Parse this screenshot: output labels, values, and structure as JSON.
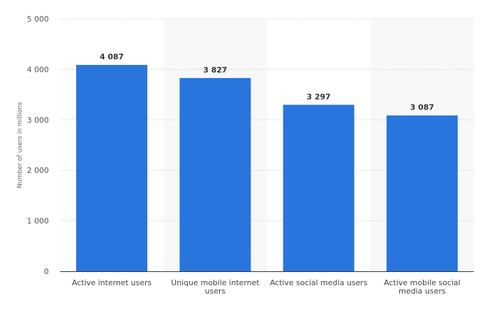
{
  "chart_data": {
    "type": "bar",
    "title": "",
    "xlabel": "",
    "ylabel": "Number of users in millions",
    "ylim": [
      0,
      5000
    ],
    "yticks": [
      0,
      1000,
      2000,
      3000,
      4000,
      5000
    ],
    "ytick_labels": [
      "0",
      "1 000",
      "2 000",
      "3 000",
      "4 000",
      "5 000"
    ],
    "categories": [
      [
        "Active internet users"
      ],
      [
        "Unique mobile internet",
        "users"
      ],
      [
        "Active social media users"
      ],
      [
        "Active mobile social",
        "media users"
      ]
    ],
    "values": [
      4087,
      3827,
      3297,
      3087
    ],
    "value_labels": [
      "4 087",
      "3 827",
      "3 297",
      "3 087"
    ],
    "grid": true,
    "bar_color": "#2775dd",
    "band_color": "#f8f8f8",
    "gridline_color": "#cccccc",
    "axis_color": "#333333"
  }
}
